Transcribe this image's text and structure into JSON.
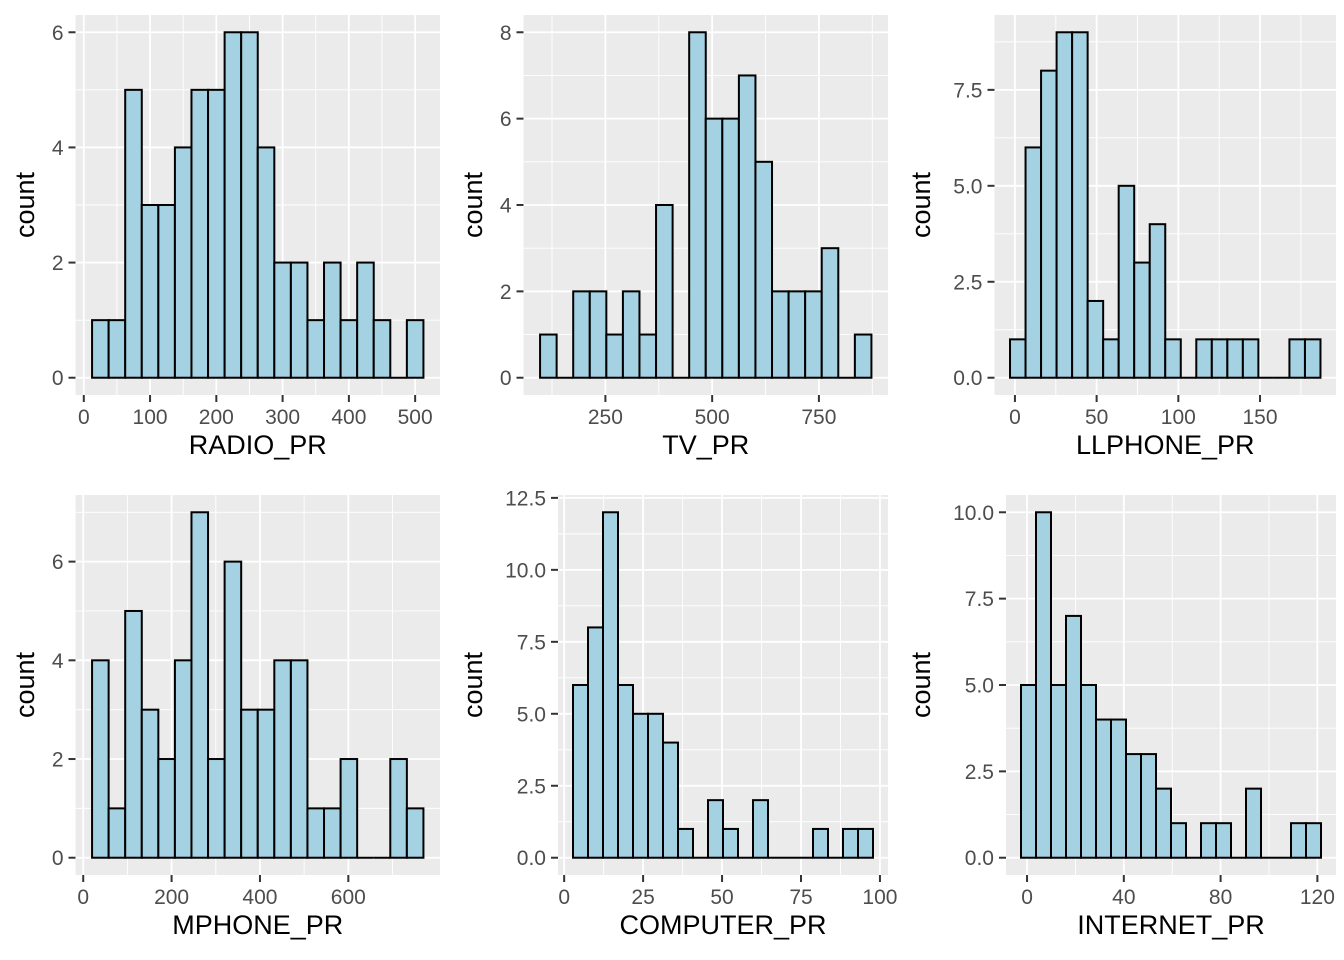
{
  "style": {
    "page_bg": "#FFFFFF",
    "panel_bg": "#EBEBEB",
    "grid_color": "#FFFFFF",
    "bar_fill": "#A4D2E2",
    "bar_stroke": "#000000",
    "tick_mark_color": "#333333",
    "tick_label_color": "#4D4D4D",
    "axis_title_color": "#000000"
  },
  "chart_data": [
    {
      "type": "bar",
      "subtype": "histogram",
      "xlabel": "RADIO_PR",
      "ylabel": "count",
      "bin_start": 12.5,
      "bin_width": 25,
      "counts": [
        1,
        1,
        5,
        3,
        3,
        4,
        5,
        5,
        6,
        6,
        4,
        2,
        2,
        1,
        2,
        1,
        2,
        1,
        0,
        1
      ],
      "y_max": 6,
      "y_tick_values": [
        0,
        2,
        4,
        6
      ],
      "y_tick_labels": [
        "0",
        "2",
        "4",
        "6"
      ],
      "y_minor": [
        1,
        3,
        5
      ],
      "x_tick_values": [
        0,
        100,
        200,
        300,
        400,
        500
      ],
      "x_tick_labels": [
        "0",
        "100",
        "200",
        "300",
        "400",
        "500"
      ],
      "x_minor": [
        50,
        150,
        250,
        350,
        450
      ]
    },
    {
      "type": "bar",
      "subtype": "histogram",
      "xlabel": "TV_PR",
      "ylabel": "count",
      "bin_start": 97,
      "bin_width": 38.8,
      "counts": [
        1,
        0,
        2,
        2,
        1,
        2,
        1,
        4,
        0,
        8,
        6,
        6,
        7,
        5,
        2,
        2,
        2,
        3,
        0,
        1
      ],
      "y_max": 8,
      "y_tick_values": [
        0,
        2,
        4,
        6,
        8
      ],
      "y_tick_labels": [
        "0",
        "2",
        "4",
        "6",
        "8"
      ],
      "y_minor": [
        1,
        3,
        5,
        7
      ],
      "x_tick_values": [
        250,
        500,
        750
      ],
      "x_tick_labels": [
        "250",
        "500",
        "750"
      ],
      "x_minor": [
        125,
        375,
        625,
        875
      ]
    },
    {
      "type": "bar",
      "subtype": "histogram",
      "xlabel": "LLPHONE_PR",
      "ylabel": "count",
      "bin_start": -3,
      "bin_width": 9.5,
      "counts": [
        1,
        6,
        8,
        9,
        9,
        2,
        1,
        5,
        3,
        4,
        1,
        0,
        1,
        1,
        1,
        1,
        0,
        0,
        1,
        1
      ],
      "y_max": 9,
      "y_tick_values": [
        0,
        2.5,
        5,
        7.5
      ],
      "y_tick_labels": [
        "0.0",
        "2.5",
        "5.0",
        "7.5"
      ],
      "y_minor": [
        1.25,
        3.75,
        6.25,
        8.75
      ],
      "x_tick_values": [
        0,
        50,
        100,
        150
      ],
      "x_tick_labels": [
        "0",
        "50",
        "100",
        "150"
      ],
      "x_minor": [
        25,
        75,
        125,
        175
      ]
    },
    {
      "type": "bar",
      "subtype": "histogram",
      "xlabel": "MPHONE_PR",
      "ylabel": "count",
      "bin_start": 20,
      "bin_width": 37.5,
      "counts": [
        4,
        1,
        5,
        3,
        2,
        4,
        7,
        2,
        6,
        3,
        3,
        4,
        4,
        1,
        1,
        2,
        0,
        0,
        2,
        1
      ],
      "y_max": 7,
      "y_tick_values": [
        0,
        2,
        4,
        6
      ],
      "y_tick_labels": [
        "0",
        "2",
        "4",
        "6"
      ],
      "y_minor": [
        1,
        3,
        5,
        7
      ],
      "x_tick_values": [
        0,
        200,
        400,
        600
      ],
      "x_tick_labels": [
        "0",
        "200",
        "400",
        "600"
      ],
      "x_minor": [
        100,
        300,
        500,
        700
      ]
    },
    {
      "type": "bar",
      "subtype": "histogram",
      "xlabel": "COMPUTER_PR",
      "ylabel": "count",
      "bin_start": 2.8,
      "bin_width": 4.75,
      "counts": [
        6,
        8,
        12,
        6,
        5,
        5,
        4,
        1,
        0,
        2,
        1,
        0,
        2,
        0,
        0,
        0,
        1,
        0,
        1,
        1
      ],
      "y_max": 12,
      "y_tick_values": [
        0,
        2.5,
        5,
        7.5,
        10,
        12.5
      ],
      "y_tick_labels": [
        "0.0",
        "2.5",
        "5.0",
        "7.5",
        "10.0",
        "12.5"
      ],
      "y_minor": [
        1.25,
        3.75,
        6.25,
        8.75,
        11.25
      ],
      "x_tick_values": [
        0,
        25,
        50,
        75,
        100
      ],
      "x_tick_labels": [
        "0",
        "25",
        "50",
        "75",
        "100"
      ],
      "x_minor": [
        12.5,
        37.5,
        62.5,
        87.5
      ]
    },
    {
      "type": "bar",
      "subtype": "histogram",
      "xlabel": "INTERNET_PR",
      "ylabel": "count",
      "bin_start": -2.5,
      "bin_width": 6.2,
      "counts": [
        5,
        10,
        5,
        7,
        5,
        4,
        4,
        3,
        3,
        2,
        1,
        0,
        1,
        1,
        0,
        2,
        0,
        0,
        1,
        1
      ],
      "y_max": 10,
      "y_tick_values": [
        0,
        2.5,
        5,
        7.5,
        10
      ],
      "y_tick_labels": [
        "0.0",
        "2.5",
        "5.0",
        "7.5",
        "10.0"
      ],
      "y_minor": [
        1.25,
        3.75,
        6.25,
        8.75
      ],
      "x_tick_values": [
        0,
        40,
        80,
        120
      ],
      "x_tick_labels": [
        "0",
        "40",
        "80",
        "120"
      ],
      "x_minor": [
        20,
        60,
        100
      ]
    }
  ]
}
